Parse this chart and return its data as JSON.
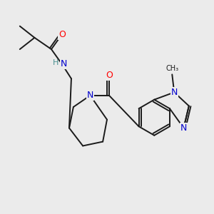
{
  "bg_color": "#ebebeb",
  "bond_color": "#1a1a1a",
  "atom_colors": {
    "N": "#0000cd",
    "O": "#ff0000",
    "H": "#4a9090",
    "C": "#1a1a1a"
  },
  "lw": 1.4
}
